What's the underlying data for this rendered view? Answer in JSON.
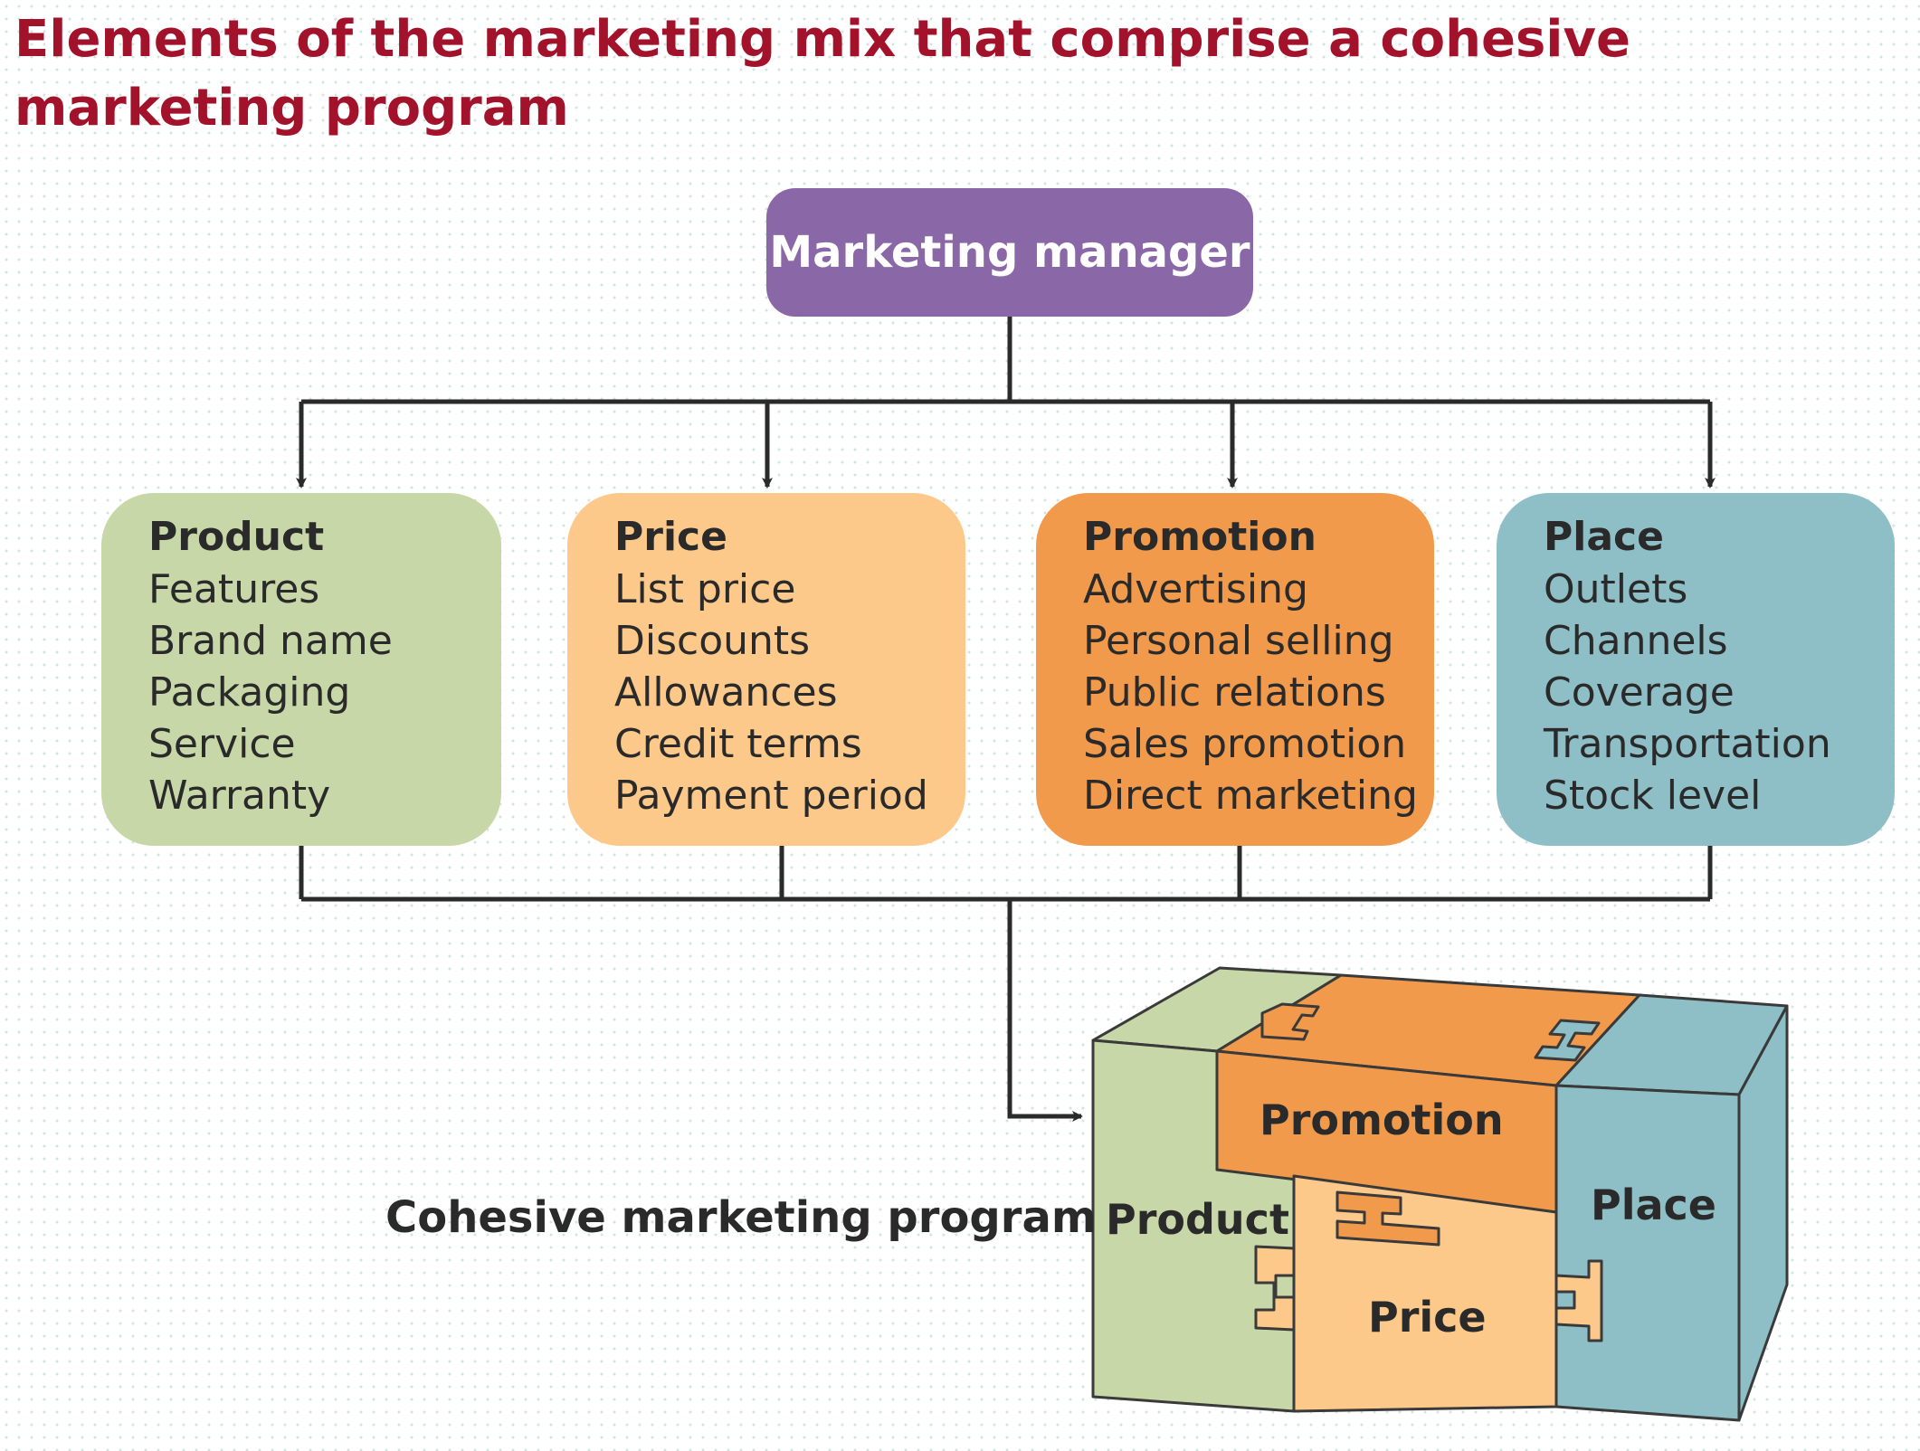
{
  "title": "Elements of the marketing mix that comprise a cohesive marketing program",
  "manager": {
    "label": "Marketing manager",
    "color": "#8a67a7"
  },
  "mix": [
    {
      "title": "Product",
      "color": "#c8d7a8",
      "items": [
        "Features",
        "Brand name",
        "Packaging",
        "Service",
        "Warranty"
      ]
    },
    {
      "title": "Price",
      "color": "#fcc98a",
      "items": [
        "List price",
        "Discounts",
        "Allowances",
        "Credit terms",
        "Payment period"
      ]
    },
    {
      "title": "Promotion",
      "color": "#f29a4b",
      "items": [
        "Advertising",
        "Personal selling",
        "Public relations",
        "Sales promotion",
        "Direct marketing"
      ]
    },
    {
      "title": "Place",
      "color": "#8ebec6",
      "items": [
        "Outlets",
        "Channels",
        "Coverage",
        "Transportation",
        "Stock level"
      ]
    }
  ],
  "program": {
    "label": "Cohesive marketing program",
    "box_labels": {
      "product": "Product",
      "promotion": "Promotion",
      "price": "Price",
      "place": "Place"
    }
  },
  "colors": {
    "title": "#a3122b",
    "connector": "#2a2a2a"
  }
}
